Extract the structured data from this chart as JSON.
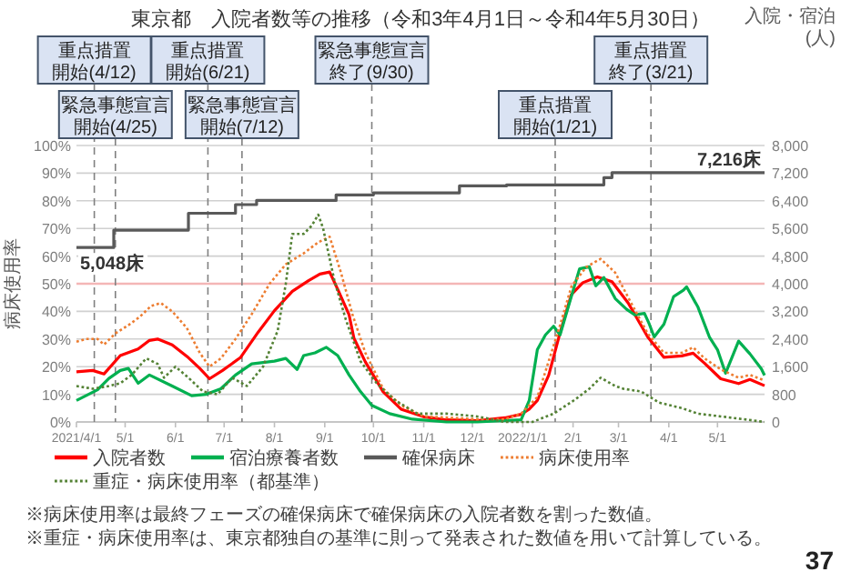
{
  "chart_data": {
    "type": "line",
    "title": "東京都　入院者数等の推移（令和3年4月1日～令和4年5月30日）",
    "ylabel": "病床使用率",
    "y2label": "入院・宿泊 (人)",
    "xlim": [
      "2021-04-01",
      "2022-05-30"
    ],
    "xticks": [
      {
        "value": "2021-04-01",
        "label": "2021/4/1"
      },
      {
        "value": "2021-05-01",
        "label": "5/1"
      },
      {
        "value": "2021-06-01",
        "label": "6/1"
      },
      {
        "value": "2021-07-01",
        "label": "7/1"
      },
      {
        "value": "2021-08-01",
        "label": "8/1"
      },
      {
        "value": "2021-09-01",
        "label": "9/1"
      },
      {
        "value": "2021-10-01",
        "label": "10/1"
      },
      {
        "value": "2021-11-01",
        "label": "11/1"
      },
      {
        "value": "2021-12-01",
        "label": "12/1"
      },
      {
        "value": "2022-01-01",
        "label": "2022/1/1"
      },
      {
        "value": "2022-02-01",
        "label": "2/1"
      },
      {
        "value": "2022-03-01",
        "label": "3/1"
      },
      {
        "value": "2022-04-01",
        "label": "4/1"
      },
      {
        "value": "2022-05-01",
        "label": "5/1"
      }
    ],
    "ylim": [
      0,
      100
    ],
    "yticks": [
      {
        "value": 0,
        "label": "0%"
      },
      {
        "value": 10,
        "label": "10%"
      },
      {
        "value": 20,
        "label": "20%"
      },
      {
        "value": 30,
        "label": "30%"
      },
      {
        "value": 40,
        "label": "40%"
      },
      {
        "value": 50,
        "label": "50%"
      },
      {
        "value": 60,
        "label": "60%"
      },
      {
        "value": 70,
        "label": "70%"
      },
      {
        "value": 80,
        "label": "80%"
      },
      {
        "value": 90,
        "label": "90%"
      },
      {
        "value": 100,
        "label": "100%"
      }
    ],
    "y2lim": [
      0,
      8000
    ],
    "y2ticks": [
      0,
      800,
      {
        "value": 1600,
        "label": "1,600"
      },
      {
        "value": 2400,
        "label": "2,400"
      },
      {
        "value": 3200,
        "label": "3,200"
      },
      {
        "value": 4000,
        "label": "4,000"
      },
      {
        "value": 4800,
        "label": "4,800"
      },
      {
        "value": 5600,
        "label": "5,600"
      },
      {
        "value": 6400,
        "label": "6,400"
      },
      {
        "value": 7200,
        "label": "7,200"
      },
      {
        "value": 8000,
        "label": "8,000"
      }
    ],
    "grid": "y",
    "legend": "bottom",
    "series": [
      {
        "name": "入院者数",
        "color": "#ff0000",
        "axis": "y2",
        "x": [
          "2021-04-01",
          "2021-04-11",
          "2021-04-18",
          "2021-04-28",
          "2021-05-09",
          "2021-05-16",
          "2021-05-21",
          "2021-05-30",
          "2021-06-09",
          "2021-06-16",
          "2021-06-22",
          "2021-06-30",
          "2021-07-11",
          "2021-07-22",
          "2021-08-01",
          "2021-08-12",
          "2021-08-22",
          "2021-08-29",
          "2021-09-04",
          "2021-09-09",
          "2021-09-16",
          "2021-09-19",
          "2021-09-26",
          "2021-10-07",
          "2021-10-18",
          "2021-11-01",
          "2021-11-15",
          "2021-12-04",
          "2021-12-21",
          "2021-12-31",
          "2022-01-05",
          "2022-01-10",
          "2022-01-17",
          "2022-01-24",
          "2022-01-31",
          "2022-02-07",
          "2022-02-16",
          "2022-02-25",
          "2022-03-07",
          "2022-03-19",
          "2022-03-29",
          "2022-04-09",
          "2022-04-16",
          "2022-04-23",
          "2022-05-03",
          "2022-05-14",
          "2022-05-21",
          "2022-05-30"
        ],
        "values": [
          1450,
          1490,
          1390,
          1920,
          2110,
          2360,
          2400,
          2230,
          1860,
          1550,
          1250,
          1490,
          1860,
          2600,
          3220,
          3780,
          4090,
          4280,
          4340,
          3840,
          3100,
          2420,
          1740,
          870,
          370,
          150,
          60,
          40,
          120,
          220,
          370,
          620,
          1350,
          2580,
          3690,
          4030,
          4200,
          4060,
          3440,
          2460,
          1870,
          1910,
          1990,
          1700,
          1250,
          1110,
          1230,
          1050
        ]
      },
      {
        "name": "宿泊療養者数",
        "color": "#00b050",
        "axis": "y2",
        "x": [
          "2021-04-01",
          "2021-04-14",
          "2021-04-21",
          "2021-04-28",
          "2021-05-03",
          "2021-05-09",
          "2021-05-16",
          "2021-05-30",
          "2021-06-11",
          "2021-06-20",
          "2021-06-29",
          "2021-07-08",
          "2021-07-18",
          "2021-08-01",
          "2021-08-08",
          "2021-08-15",
          "2021-08-19",
          "2021-08-26",
          "2021-09-02",
          "2021-09-09",
          "2021-09-16",
          "2021-09-23",
          "2021-09-30",
          "2021-10-11",
          "2021-10-25",
          "2021-11-15",
          "2021-12-04",
          "2021-12-31",
          "2022-01-05",
          "2022-01-10",
          "2022-01-15",
          "2022-01-20",
          "2022-01-24",
          "2022-01-29",
          "2022-02-05",
          "2022-02-11",
          "2022-02-15",
          "2022-02-20",
          "2022-02-27",
          "2022-03-06",
          "2022-03-11",
          "2022-03-17",
          "2022-03-20",
          "2022-03-23",
          "2022-03-29",
          "2022-04-04",
          "2022-04-10",
          "2022-04-12",
          "2022-04-19",
          "2022-04-26",
          "2022-05-01",
          "2022-05-06",
          "2022-05-14",
          "2022-05-21",
          "2022-05-28",
          "2022-05-30"
        ],
        "values": [
          620,
          930,
          1260,
          1490,
          1550,
          1120,
          1360,
          1040,
          760,
          800,
          960,
          1360,
          1680,
          1760,
          1840,
          1520,
          1920,
          2000,
          2160,
          1920,
          1360,
          880,
          480,
          240,
          80,
          0,
          0,
          60,
          620,
          2090,
          2520,
          2770,
          2520,
          3320,
          4430,
          4490,
          3940,
          4180,
          3570,
          3260,
          3100,
          3140,
          2830,
          2460,
          2830,
          3630,
          3810,
          3910,
          3320,
          2460,
          2090,
          1410,
          2340,
          1970,
          1540,
          1350
        ]
      },
      {
        "name": "確保病床",
        "color": "#595959",
        "axis": "y2",
        "type": "step",
        "x": [
          "2021-04-01",
          "2021-04-24",
          "2021-06-09",
          "2021-07-08",
          "2021-07-21",
          "2021-09-08",
          "2021-10-01",
          "2021-11-23",
          "2021-12-22",
          "2022-02-20",
          "2022-02-25",
          "2022-05-30"
        ],
        "values": [
          5048,
          5550,
          6040,
          6290,
          6410,
          6570,
          6630,
          6830,
          6860,
          7070,
          7216,
          7216
        ]
      },
      {
        "name": "病床使用率",
        "color": "#ed7d31",
        "line_style": "dotted",
        "x": [
          "2021-04-01",
          "2021-04-07",
          "2021-04-14",
          "2021-04-18",
          "2021-04-25",
          "2021-05-03",
          "2021-05-10",
          "2021-05-17",
          "2021-05-23",
          "2021-05-30",
          "2021-06-08",
          "2021-06-16",
          "2021-06-22",
          "2021-06-29",
          "2021-07-08",
          "2021-07-18",
          "2021-07-29",
          "2021-08-08",
          "2021-08-19",
          "2021-08-28",
          "2021-09-04",
          "2021-09-11",
          "2021-09-18",
          "2021-09-26",
          "2021-10-07",
          "2021-10-18",
          "2021-11-01",
          "2021-12-04",
          "2021-12-21",
          "2021-12-31",
          "2022-01-10",
          "2022-01-17",
          "2022-01-24",
          "2022-01-31",
          "2022-02-09",
          "2022-02-18",
          "2022-02-27",
          "2022-03-07",
          "2022-03-19",
          "2022-03-29",
          "2022-04-09",
          "2022-04-16",
          "2022-04-23",
          "2022-05-03",
          "2022-05-14",
          "2022-05-21",
          "2022-05-30"
        ],
        "values": [
          29,
          30,
          30,
          28,
          32,
          35,
          38,
          42,
          43,
          40,
          34,
          25,
          20,
          23,
          30,
          39,
          50,
          57,
          61,
          65,
          67,
          54,
          39,
          25,
          12,
          6,
          2,
          1,
          1,
          3,
          9,
          22,
          35,
          49,
          56,
          59,
          54,
          45,
          32,
          25,
          25,
          27,
          23,
          19,
          16,
          17,
          15
        ]
      },
      {
        "name": "重症・病床使用率（都基準）",
        "color": "#548235",
        "line_style": "dotted",
        "x": [
          "2021-04-01",
          "2021-04-11",
          "2021-04-21",
          "2021-04-28",
          "2021-05-05",
          "2021-05-14",
          "2021-05-21",
          "2021-05-25",
          "2021-06-01",
          "2021-06-09",
          "2021-06-18",
          "2021-06-27",
          "2021-07-06",
          "2021-07-15",
          "2021-07-25",
          "2021-08-03",
          "2021-08-08",
          "2021-08-12",
          "2021-08-19",
          "2021-08-24",
          "2021-08-28",
          "2021-08-31",
          "2021-09-07",
          "2021-09-14",
          "2021-09-23",
          "2021-10-03",
          "2021-10-14",
          "2021-10-28",
          "2021-11-15",
          "2021-12-04",
          "2021-12-21",
          "2022-01-07",
          "2022-01-20",
          "2022-02-02",
          "2022-02-11",
          "2022-02-18",
          "2022-02-27",
          "2022-03-04",
          "2022-03-15",
          "2022-03-26",
          "2022-04-09",
          "2022-04-19",
          "2022-05-03",
          "2022-05-17",
          "2022-05-30"
        ],
        "values": [
          13,
          12,
          13,
          14,
          17,
          23,
          21,
          16,
          20,
          16,
          11,
          10,
          16,
          13,
          20,
          33,
          50,
          68,
          68,
          71,
          75,
          70,
          51,
          37,
          22,
          14,
          8,
          3,
          3,
          2,
          0,
          0,
          3,
          8,
          12,
          16,
          13,
          12,
          11,
          7,
          5,
          3,
          2,
          1,
          0
        ]
      }
    ],
    "ref_lines": [
      {
        "axis": "y",
        "value": 50,
        "color": "#f4b6b6"
      },
      {
        "axis": "x",
        "value": "2021-04-12",
        "label": "重点措置開始(4/12)",
        "color": "#808080",
        "line_style": "dashed"
      },
      {
        "axis": "x",
        "value": "2021-04-25",
        "label": "緊急事態宣言開始(4/25)",
        "color": "#808080",
        "line_style": "dashed"
      },
      {
        "axis": "x",
        "value": "2021-06-21",
        "label": "重点措置開始(6/21)",
        "color": "#808080",
        "line_style": "dashed"
      },
      {
        "axis": "x",
        "value": "2021-07-12",
        "label": "緊急事態宣言開始(7/12)",
        "color": "#808080",
        "line_style": "dashed"
      },
      {
        "axis": "x",
        "value": "2021-09-30",
        "label": "緊急事態宣言終了(9/30)",
        "color": "#808080",
        "line_style": "dashed"
      },
      {
        "axis": "x",
        "value": "2022-01-21",
        "label": "重点措置開始(1/21)",
        "color": "#808080",
        "line_style": "dashed"
      },
      {
        "axis": "x",
        "value": "2022-03-21",
        "label": "重点措置終了(3/21)",
        "color": "#808080",
        "line_style": "dashed"
      }
    ],
    "annotations": [
      "5,048床",
      "7,216床",
      "※病床使用率は最終フェーズの確保病床で確保病床の入院者数を割った数値。",
      "※重症・病床使用率は、東京都独自の基準に則って発表された数値を用いて計算している。",
      "37"
    ]
  }
}
